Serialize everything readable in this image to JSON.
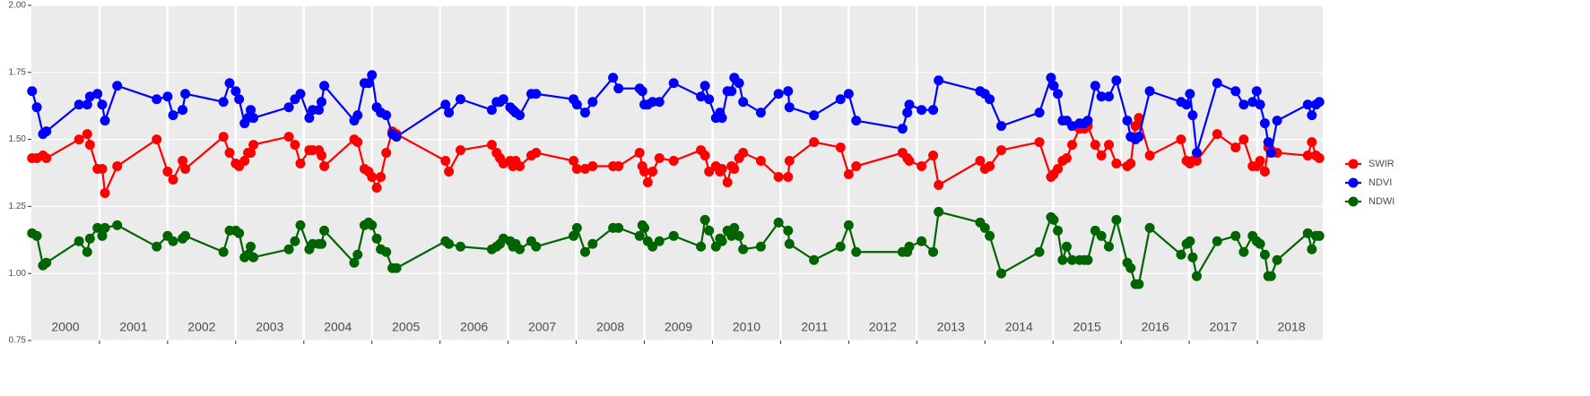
{
  "chart_data": {
    "type": "line",
    "x": [
      2000.01,
      2000.08,
      2000.17,
      2000.22,
      2000.7,
      2000.82,
      2000.86,
      2000.97,
      2001.04,
      2001.08,
      2001.26,
      2001.84,
      2002.0,
      2002.08,
      2002.22,
      2002.26,
      2002.82,
      2002.91,
      2003.0,
      2003.05,
      2003.13,
      2003.18,
      2003.22,
      2003.26,
      2003.78,
      2003.87,
      2003.95,
      2004.08,
      2004.13,
      2004.22,
      2004.26,
      2004.3,
      2004.74,
      2004.79,
      2004.89,
      2004.95,
      2005.0,
      2005.07,
      2005.13,
      2005.21,
      2005.3,
      2005.36,
      2006.08,
      2006.13,
      2006.3,
      2006.76,
      2006.83,
      2006.88,
      2006.93,
      2007.03,
      2007.07,
      2007.11,
      2007.17,
      2007.34,
      2007.41,
      2007.96,
      2008.01,
      2008.13,
      2008.24,
      2008.54,
      2008.62,
      2008.93,
      2008.97,
      2009.0,
      2009.05,
      2009.12,
      2009.22,
      2009.43,
      2009.83,
      2009.89,
      2009.95,
      2010.05,
      2010.11,
      2010.14,
      2010.22,
      2010.28,
      2010.32,
      2010.39,
      2010.45,
      2010.71,
      2010.97,
      2011.11,
      2011.13,
      2011.49,
      2011.88,
      2012.0,
      2012.11,
      2012.79,
      2012.86,
      2012.89,
      2013.07,
      2013.24,
      2013.32,
      2013.93,
      2014.0,
      2014.07,
      2014.24,
      2014.8,
      2014.97,
      2015.01,
      2015.07,
      2015.14,
      2015.2,
      2015.28,
      2015.39,
      2015.46,
      2015.51,
      2015.62,
      2015.71,
      2015.82,
      2015.93,
      2016.09,
      2016.14,
      2016.21,
      2016.26,
      2016.42,
      2016.88,
      2016.96,
      2017.01,
      2017.05,
      2017.11,
      2017.41,
      2017.68,
      2017.8,
      2017.93,
      2017.99,
      2018.04,
      2018.11,
      2018.16,
      2018.2,
      2018.29,
      2018.74,
      2018.8,
      2018.86,
      2018.91
    ],
    "series": [
      {
        "name": "SWIR",
        "color": "#ff0000",
        "values": [
          1.43,
          1.43,
          1.44,
          1.43,
          1.5,
          1.52,
          1.48,
          1.39,
          1.39,
          1.3,
          1.4,
          1.5,
          1.38,
          1.35,
          1.42,
          1.39,
          1.51,
          1.45,
          1.41,
          1.4,
          1.42,
          1.45,
          1.45,
          1.48,
          1.51,
          1.48,
          1.41,
          1.46,
          1.46,
          1.46,
          1.44,
          1.4,
          1.5,
          1.49,
          1.39,
          1.38,
          1.36,
          1.32,
          1.36,
          1.45,
          1.53,
          1.52,
          1.42,
          1.38,
          1.46,
          1.48,
          1.45,
          1.43,
          1.41,
          1.42,
          1.4,
          1.42,
          1.4,
          1.44,
          1.45,
          1.42,
          1.39,
          1.39,
          1.4,
          1.4,
          1.4,
          1.45,
          1.4,
          1.38,
          1.34,
          1.38,
          1.43,
          1.42,
          1.46,
          1.44,
          1.38,
          1.4,
          1.38,
          1.39,
          1.34,
          1.4,
          1.39,
          1.43,
          1.45,
          1.42,
          1.36,
          1.36,
          1.42,
          1.49,
          1.47,
          1.37,
          1.4,
          1.45,
          1.43,
          1.42,
          1.4,
          1.44,
          1.33,
          1.42,
          1.39,
          1.4,
          1.46,
          1.49,
          1.36,
          1.37,
          1.39,
          1.42,
          1.43,
          1.48,
          1.54,
          1.54,
          1.55,
          1.48,
          1.44,
          1.48,
          1.41,
          1.4,
          1.41,
          1.55,
          1.58,
          1.44,
          1.5,
          1.42,
          1.41,
          1.42,
          1.42,
          1.52,
          1.47,
          1.5,
          1.4,
          1.4,
          1.42,
          1.38,
          1.47,
          1.46,
          1.45,
          1.44,
          1.49,
          1.44,
          1.43
        ]
      },
      {
        "name": "NDVI",
        "color": "#0000ff",
        "values": [
          1.68,
          1.62,
          1.52,
          1.53,
          1.63,
          1.63,
          1.66,
          1.67,
          1.63,
          1.57,
          1.7,
          1.65,
          1.66,
          1.59,
          1.61,
          1.67,
          1.64,
          1.71,
          1.68,
          1.65,
          1.56,
          1.58,
          1.61,
          1.58,
          1.62,
          1.65,
          1.67,
          1.58,
          1.61,
          1.61,
          1.64,
          1.7,
          1.57,
          1.59,
          1.71,
          1.71,
          1.74,
          1.62,
          1.6,
          1.59,
          1.52,
          1.51,
          1.63,
          1.6,
          1.65,
          1.61,
          1.64,
          1.64,
          1.65,
          1.62,
          1.61,
          1.6,
          1.59,
          1.67,
          1.67,
          1.65,
          1.63,
          1.6,
          1.64,
          1.73,
          1.69,
          1.69,
          1.68,
          1.63,
          1.63,
          1.64,
          1.64,
          1.71,
          1.66,
          1.7,
          1.65,
          1.58,
          1.6,
          1.58,
          1.68,
          1.68,
          1.73,
          1.71,
          1.64,
          1.6,
          1.67,
          1.68,
          1.62,
          1.59,
          1.65,
          1.67,
          1.57,
          1.54,
          1.6,
          1.63,
          1.61,
          1.61,
          1.72,
          1.68,
          1.67,
          1.65,
          1.55,
          1.6,
          1.73,
          1.7,
          1.67,
          1.57,
          1.57,
          1.55,
          1.56,
          1.56,
          1.57,
          1.7,
          1.66,
          1.66,
          1.72,
          1.57,
          1.51,
          1.5,
          1.51,
          1.68,
          1.64,
          1.63,
          1.67,
          1.59,
          1.45,
          1.71,
          1.68,
          1.63,
          1.64,
          1.68,
          1.63,
          1.56,
          1.49,
          1.45,
          1.57,
          1.63,
          1.59,
          1.63,
          1.64
        ]
      },
      {
        "name": "NDWI",
        "color": "#006400",
        "values": [
          1.15,
          1.14,
          1.03,
          1.04,
          1.12,
          1.08,
          1.13,
          1.17,
          1.14,
          1.17,
          1.18,
          1.1,
          1.14,
          1.12,
          1.13,
          1.14,
          1.08,
          1.16,
          1.16,
          1.15,
          1.06,
          1.07,
          1.1,
          1.06,
          1.09,
          1.12,
          1.18,
          1.09,
          1.11,
          1.11,
          1.11,
          1.16,
          1.04,
          1.07,
          1.18,
          1.19,
          1.18,
          1.13,
          1.09,
          1.08,
          1.02,
          1.02,
          1.12,
          1.11,
          1.1,
          1.09,
          1.1,
          1.11,
          1.13,
          1.12,
          1.1,
          1.11,
          1.09,
          1.12,
          1.1,
          1.14,
          1.17,
          1.08,
          1.11,
          1.17,
          1.17,
          1.14,
          1.18,
          1.17,
          1.12,
          1.1,
          1.12,
          1.14,
          1.1,
          1.2,
          1.16,
          1.1,
          1.13,
          1.12,
          1.16,
          1.14,
          1.17,
          1.14,
          1.09,
          1.1,
          1.19,
          1.16,
          1.11,
          1.05,
          1.1,
          1.18,
          1.08,
          1.08,
          1.08,
          1.1,
          1.12,
          1.08,
          1.23,
          1.19,
          1.17,
          1.14,
          1.0,
          1.08,
          1.21,
          1.2,
          1.16,
          1.05,
          1.1,
          1.05,
          1.05,
          1.05,
          1.05,
          1.16,
          1.14,
          1.1,
          1.2,
          1.04,
          1.02,
          0.96,
          0.96,
          1.17,
          1.07,
          1.11,
          1.12,
          1.06,
          0.99,
          1.12,
          1.14,
          1.08,
          1.14,
          1.12,
          1.11,
          1.07,
          0.99,
          0.99,
          1.05,
          1.15,
          1.09,
          1.14,
          1.14
        ]
      }
    ],
    "xlim": [
      2000,
      2018.96
    ],
    "xgrid": [
      2001,
      2002,
      2003,
      2004,
      2005,
      2006,
      2007,
      2008,
      2009,
      2010,
      2011,
      2012,
      2013,
      2014,
      2015,
      2016,
      2017,
      2018
    ],
    "xticks": [
      {
        "value": 2000.5,
        "label": "2000"
      },
      {
        "value": 2001.5,
        "label": "2001"
      },
      {
        "value": 2002.5,
        "label": "2002"
      },
      {
        "value": 2003.5,
        "label": "2003"
      },
      {
        "value": 2004.5,
        "label": "2004"
      },
      {
        "value": 2005.5,
        "label": "2005"
      },
      {
        "value": 2006.5,
        "label": "2006"
      },
      {
        "value": 2007.5,
        "label": "2007"
      },
      {
        "value": 2008.5,
        "label": "2008"
      },
      {
        "value": 2009.5,
        "label": "2009"
      },
      {
        "value": 2010.5,
        "label": "2010"
      },
      {
        "value": 2011.5,
        "label": "2011"
      },
      {
        "value": 2012.5,
        "label": "2012"
      },
      {
        "value": 2013.5,
        "label": "2013"
      },
      {
        "value": 2014.5,
        "label": "2014"
      },
      {
        "value": 2015.5,
        "label": "2015"
      },
      {
        "value": 2016.5,
        "label": "2016"
      },
      {
        "value": 2017.5,
        "label": "2017"
      },
      {
        "value": 2018.5,
        "label": "2018"
      }
    ],
    "ylim": [
      0.75,
      2.0
    ],
    "yticks": [
      0.75,
      {
        "value": 1,
        "label": "1.00"
      },
      1.25,
      {
        "value": 1.5,
        "label": "1.50"
      },
      1.75,
      {
        "value": 2,
        "label": "2.00"
      }
    ],
    "legend": "right"
  }
}
